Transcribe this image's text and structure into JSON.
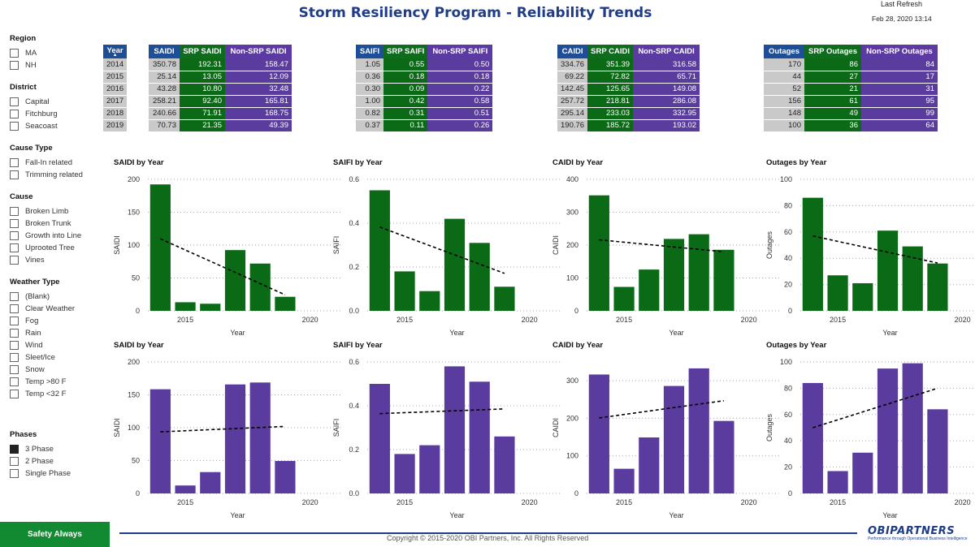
{
  "header": {
    "title": "Storm Resiliency Program - Reliability Trends",
    "last_refresh_label": "Last Refresh",
    "last_refresh_value": "Feb 28, 2020 13:14"
  },
  "filters": [
    {
      "title": "Region",
      "items": [
        {
          "label": "MA",
          "checked": false
        },
        {
          "label": "NH",
          "checked": false
        }
      ]
    },
    {
      "title": "District",
      "items": [
        {
          "label": "Capital",
          "checked": false
        },
        {
          "label": "Fitchburg",
          "checked": false
        },
        {
          "label": "Seacoast",
          "checked": false
        }
      ]
    },
    {
      "title": "Cause Type",
      "items": [
        {
          "label": "Fall-In related",
          "checked": false
        },
        {
          "label": "Trimming related",
          "checked": false
        }
      ]
    },
    {
      "title": "Cause",
      "items": [
        {
          "label": "Broken Limb",
          "checked": false
        },
        {
          "label": "Broken Trunk",
          "checked": false
        },
        {
          "label": "Growth into Line",
          "checked": false
        },
        {
          "label": "Uprooted Tree",
          "checked": false
        },
        {
          "label": "Vines",
          "checked": false
        }
      ]
    },
    {
      "title": "Weather Type",
      "items": [
        {
          "label": "(Blank)",
          "checked": false
        },
        {
          "label": "Clear Weather",
          "checked": false
        },
        {
          "label": "Fog",
          "checked": false
        },
        {
          "label": "Rain",
          "checked": false
        },
        {
          "label": "Wind",
          "checked": false
        },
        {
          "label": "Sleet/Ice",
          "checked": false
        },
        {
          "label": "Snow",
          "checked": false
        },
        {
          "label": "Temp >80 F",
          "checked": false
        },
        {
          "label": "Temp <32 F",
          "checked": false
        }
      ]
    },
    {
      "title": "Phases",
      "items": [
        {
          "label": "3 Phase",
          "checked": true
        },
        {
          "label": "2 Phase",
          "checked": false
        },
        {
          "label": "Single Phase",
          "checked": false
        }
      ]
    }
  ],
  "tables": {
    "years": [
      "2014",
      "2015",
      "2016",
      "2017",
      "2018",
      "2019"
    ],
    "year_header": "Year",
    "groups": [
      {
        "key": "saidi",
        "headers": [
          "SAIDI",
          "SRP SAIDI",
          "Non-SRP SAIDI"
        ],
        "rows": [
          [
            "350.78",
            "192.31",
            "158.47"
          ],
          [
            "25.14",
            "13.05",
            "12.09"
          ],
          [
            "43.28",
            "10.80",
            "32.48"
          ],
          [
            "258.21",
            "92.40",
            "165.81"
          ],
          [
            "240.66",
            "71.91",
            "168.75"
          ],
          [
            "70.73",
            "21.35",
            "49.39"
          ]
        ]
      },
      {
        "key": "saifi",
        "headers": [
          "SAIFI",
          "SRP SAIFI",
          "Non-SRP SAIFI"
        ],
        "rows": [
          [
            "1.05",
            "0.55",
            "0.50"
          ],
          [
            "0.36",
            "0.18",
            "0.18"
          ],
          [
            "0.30",
            "0.09",
            "0.22"
          ],
          [
            "1.00",
            "0.42",
            "0.58"
          ],
          [
            "0.82",
            "0.31",
            "0.51"
          ],
          [
            "0.37",
            "0.11",
            "0.26"
          ]
        ]
      },
      {
        "key": "caidi",
        "headers": [
          "CAIDI",
          "SRP CAIDI",
          "Non-SRP CAIDI"
        ],
        "rows": [
          [
            "334.76",
            "351.39",
            "316.58"
          ],
          [
            "69.22",
            "72.82",
            "65.71"
          ],
          [
            "142.45",
            "125.65",
            "149.08"
          ],
          [
            "257.72",
            "218.81",
            "286.08"
          ],
          [
            "295.14",
            "233.03",
            "332.95"
          ],
          [
            "190.76",
            "185.72",
            "193.02"
          ]
        ]
      },
      {
        "key": "outages",
        "headers": [
          "Outages",
          "SRP Outages",
          "Non-SRP Outages"
        ],
        "rows": [
          [
            "170",
            "86",
            "84"
          ],
          [
            "44",
            "27",
            "17"
          ],
          [
            "52",
            "21",
            "31"
          ],
          [
            "156",
            "61",
            "95"
          ],
          [
            "148",
            "49",
            "99"
          ],
          [
            "100",
            "36",
            "64"
          ]
        ]
      }
    ]
  },
  "chart_data": [
    {
      "type": "bar",
      "title": "SAIDI by Year",
      "xlabel": "Year",
      "ylabel": "SAIDI",
      "color": "#0b6a16",
      "x": [
        2014,
        2015,
        2016,
        2017,
        2018,
        2019
      ],
      "values": [
        192.31,
        13.05,
        10.8,
        92.4,
        71.91,
        21.35
      ],
      "ylim": [
        0,
        200
      ],
      "yticks": [
        0,
        50,
        100,
        150,
        200
      ],
      "xticks": [
        "2015",
        "2020"
      ],
      "trendline": true
    },
    {
      "type": "bar",
      "title": "SAIFI by Year",
      "xlabel": "Year",
      "ylabel": "SAIFI",
      "color": "#0b6a16",
      "x": [
        2014,
        2015,
        2016,
        2017,
        2018,
        2019
      ],
      "values": [
        0.55,
        0.18,
        0.09,
        0.42,
        0.31,
        0.11
      ],
      "ylim": [
        0,
        0.6
      ],
      "yticks": [
        "0.0",
        "0.2",
        "0.4",
        "0.6"
      ],
      "xticks": [
        "2015",
        "2020"
      ],
      "trendline": true
    },
    {
      "type": "bar",
      "title": "CAIDI by Year",
      "xlabel": "Year",
      "ylabel": "CAIDI",
      "color": "#0b6a16",
      "x": [
        2014,
        2015,
        2016,
        2017,
        2018,
        2019
      ],
      "values": [
        351.39,
        72.82,
        125.65,
        218.81,
        233.03,
        185.72
      ],
      "ylim": [
        0,
        400
      ],
      "yticks": [
        0,
        100,
        200,
        300,
        400
      ],
      "xticks": [
        "2015",
        "2020"
      ],
      "trendline": true
    },
    {
      "type": "bar",
      "title": "Outages by Year",
      "xlabel": "Year",
      "ylabel": "Outages",
      "color": "#0b6a16",
      "x": [
        2014,
        2015,
        2016,
        2017,
        2018,
        2019
      ],
      "values": [
        86,
        27,
        21,
        61,
        49,
        36
      ],
      "ylim": [
        0,
        100
      ],
      "yticks": [
        0,
        20,
        40,
        60,
        80,
        100
      ],
      "xticks": [
        "2015",
        "2020"
      ],
      "trendline": true
    },
    {
      "type": "bar",
      "title": "SAIDI by Year",
      "xlabel": "Year",
      "ylabel": "SAIDI",
      "color": "#5a3b9e",
      "x": [
        2014,
        2015,
        2016,
        2017,
        2018,
        2019
      ],
      "values": [
        158.47,
        12.09,
        32.48,
        165.81,
        168.75,
        49.39
      ],
      "ylim": [
        0,
        200
      ],
      "yticks": [
        0,
        50,
        100,
        150,
        200
      ],
      "xticks": [
        "2015",
        "2020"
      ],
      "trendline": true
    },
    {
      "type": "bar",
      "title": "SAIFI by Year",
      "xlabel": "Year",
      "ylabel": "SAIFI",
      "color": "#5a3b9e",
      "x": [
        2014,
        2015,
        2016,
        2017,
        2018,
        2019
      ],
      "values": [
        0.5,
        0.18,
        0.22,
        0.58,
        0.51,
        0.26
      ],
      "ylim": [
        0,
        0.6
      ],
      "yticks": [
        "0.0",
        "0.2",
        "0.4",
        "0.6"
      ],
      "xticks": [
        "2015",
        "2020"
      ],
      "trendline": true
    },
    {
      "type": "bar",
      "title": "CAIDI by Year",
      "xlabel": "Year",
      "ylabel": "CAIDI",
      "color": "#5a3b9e",
      "x": [
        2014,
        2015,
        2016,
        2017,
        2018,
        2019
      ],
      "values": [
        316.58,
        65.71,
        149.08,
        286.08,
        332.95,
        193.02
      ],
      "ylim": [
        0,
        350
      ],
      "yticks": [
        0,
        100,
        200,
        300
      ],
      "xticks": [
        "2015",
        "2020"
      ],
      "trendline": true
    },
    {
      "type": "bar",
      "title": "Outages by Year",
      "xlabel": "Year",
      "ylabel": "Outages",
      "color": "#5a3b9e",
      "x": [
        2014,
        2015,
        2016,
        2017,
        2018,
        2019
      ],
      "values": [
        84,
        17,
        31,
        95,
        99,
        64
      ],
      "ylim": [
        0,
        100
      ],
      "yticks": [
        0,
        20,
        40,
        60,
        80,
        100
      ],
      "xticks": [
        "2015",
        "2020"
      ],
      "trendline": true
    }
  ],
  "colors": {
    "header_blue": "#1f4e98",
    "srp_green": "#0b6a16",
    "non_srp_purple": "#5a3b9e",
    "total_gray": "#c9c9c9",
    "safety_green": "#118a32",
    "title_navy": "#1f3c88"
  },
  "footer": {
    "safety_label": "Safety Always",
    "copyright": "Copyright © 2015-2020 OBI Partners, Inc. All Rights Reserved",
    "logo_text": "OBIPARTNERS",
    "logo_tagline": "Performance through Operational Business Intelligence"
  }
}
